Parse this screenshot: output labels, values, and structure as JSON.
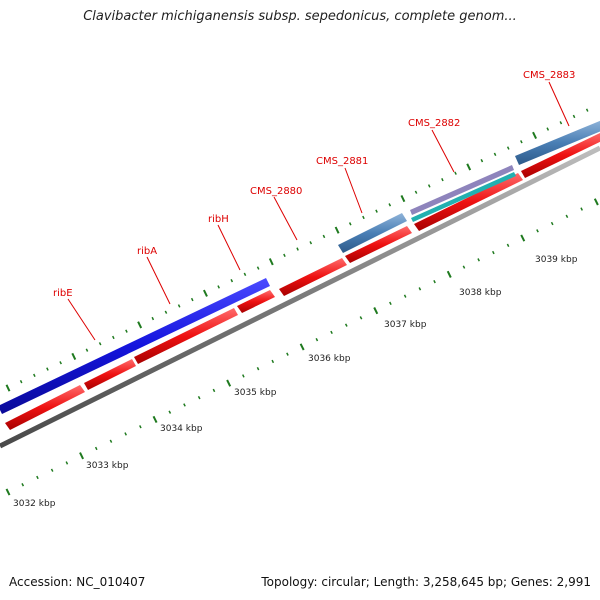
{
  "header": {
    "title": "Clavibacter michiganensis subsp. sepedonicus, complete genom..."
  },
  "footer": {
    "accession": "Accession: NC_010407",
    "summary": "Topology: circular; Length: 3,258,645 bp; Genes: 2,991"
  },
  "genome_map": {
    "colors": {
      "backbone": "#7a7a7a",
      "gene_label": "#dd0000",
      "tick": "#1f7a1f",
      "cds": "#ee1111",
      "operon": "#1414dd",
      "feature_blue": "#4a7fb5",
      "feature_purple": "#7a6fb0",
      "feature_teal": "#22b0b0"
    },
    "gene_labels": [
      "ribE",
      "ribA",
      "ribH",
      "CMS_2880",
      "CMS_2881",
      "CMS_2882",
      "CMS_2883"
    ],
    "scale_labels": [
      "3032 kbp",
      "3033 kbp",
      "3034 kbp",
      "3035 kbp",
      "3036 kbp",
      "3037 kbp",
      "3038 kbp",
      "3039 kbp"
    ]
  }
}
